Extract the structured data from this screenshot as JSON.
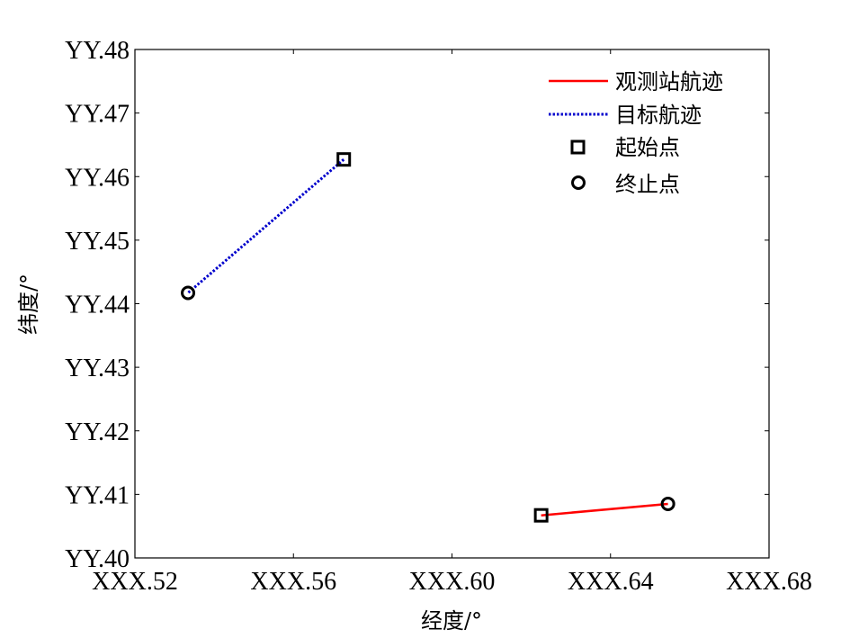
{
  "chart_data": {
    "type": "line",
    "xlabel": "经度/°",
    "ylabel": "纬度/°",
    "x_ticks": [
      "XXX.52",
      "XXX.56",
      "XXX.60",
      "XXX.64",
      "XXX.68"
    ],
    "y_ticks": [
      "YY.40",
      "YY.41",
      "YY.42",
      "YY.43",
      "YY.44",
      "YY.45",
      "YY.46",
      "YY.47",
      "YY.48"
    ],
    "xlim": [
      0.52,
      0.68
    ],
    "ylim": [
      0.4,
      0.48
    ],
    "grid": false,
    "legend_position": "top-right",
    "series": [
      {
        "name": "观测站航迹",
        "color": "#ff0000",
        "style": "solid",
        "x": [
          0.6225,
          0.6545
        ],
        "y": [
          0.4067,
          0.4085
        ]
      },
      {
        "name": "目标航迹",
        "color": "#0000cc",
        "style": "dotted",
        "x": [
          0.5727,
          0.5334
        ],
        "y": [
          0.4627,
          0.4417
        ]
      }
    ],
    "markers": [
      {
        "name": "起始点",
        "shape": "square"
      },
      {
        "name": "终止点",
        "shape": "circle"
      }
    ]
  }
}
